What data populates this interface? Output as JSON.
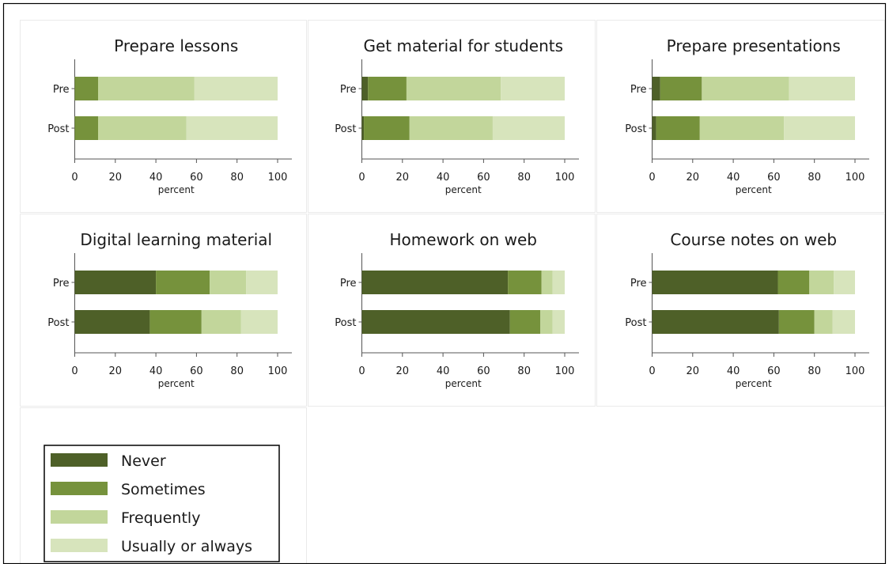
{
  "chart_data": {
    "type": "bar",
    "orientation": "horizontal",
    "stacked": true,
    "legend": {
      "position": "bottom-left",
      "entries": [
        {
          "label": "Never",
          "color": "#4e6028"
        },
        {
          "label": "Sometimes",
          "color": "#76923c"
        },
        {
          "label": "Frequently",
          "color": "#c2d69b"
        },
        {
          "label": "Usually or always",
          "color": "#d7e4bc"
        }
      ]
    },
    "panels": [
      {
        "title": "Prepare lessons",
        "categories": [
          "Pre",
          "Post"
        ],
        "series": [
          {
            "name": "Never",
            "values": [
              0,
              0
            ]
          },
          {
            "name": "Sometimes",
            "values": [
              11.5,
              11.5
            ]
          },
          {
            "name": "Frequently",
            "values": [
              47.5,
              43.5
            ]
          },
          {
            "name": "Usually or always",
            "values": [
              41,
              45
            ]
          }
        ],
        "xlabel": "percent",
        "xlim": [
          0,
          100
        ],
        "xticks": [
          0,
          20,
          40,
          60,
          80,
          100
        ]
      },
      {
        "title": "Get material for students",
        "categories": [
          "Pre",
          "Post"
        ],
        "series": [
          {
            "name": "Never",
            "values": [
              3,
              1
            ]
          },
          {
            "name": "Sometimes",
            "values": [
              19,
              22.5
            ]
          },
          {
            "name": "Frequently",
            "values": [
              46.5,
              41
            ]
          },
          {
            "name": "Usually or always",
            "values": [
              31.5,
              35.5
            ]
          }
        ],
        "xlabel": "percent",
        "xlim": [
          0,
          100
        ],
        "xticks": [
          0,
          20,
          40,
          60,
          80,
          100
        ]
      },
      {
        "title": "Prepare presentations",
        "categories": [
          "Pre",
          "Post"
        ],
        "series": [
          {
            "name": "Never",
            "values": [
              4,
              2
            ]
          },
          {
            "name": "Sometimes",
            "values": [
              20.5,
              21.5
            ]
          },
          {
            "name": "Frequently",
            "values": [
              43,
              41.5
            ]
          },
          {
            "name": "Usually or always",
            "values": [
              32.5,
              35
            ]
          }
        ],
        "xlabel": "percent",
        "xlim": [
          0,
          100
        ],
        "xticks": [
          0,
          20,
          40,
          60,
          80,
          100
        ]
      },
      {
        "title": "Digital learning material",
        "categories": [
          "Pre",
          "Post"
        ],
        "series": [
          {
            "name": "Never",
            "values": [
              40,
              37
            ]
          },
          {
            "name": "Sometimes",
            "values": [
              26.5,
              25.5
            ]
          },
          {
            "name": "Frequently",
            "values": [
              18,
              19.5
            ]
          },
          {
            "name": "Usually or always",
            "values": [
              15.5,
              18
            ]
          }
        ],
        "xlabel": "percent",
        "xlim": [
          0,
          100
        ],
        "xticks": [
          0,
          20,
          40,
          60,
          80,
          100
        ]
      },
      {
        "title": "Homework on web",
        "categories": [
          "Pre",
          "Post"
        ],
        "series": [
          {
            "name": "Never",
            "values": [
              72,
              73
            ]
          },
          {
            "name": "Sometimes",
            "values": [
              16.5,
              15
            ]
          },
          {
            "name": "Frequently",
            "values": [
              5.5,
              6
            ]
          },
          {
            "name": "Usually or always",
            "values": [
              6,
              6
            ]
          }
        ],
        "xlabel": "percent",
        "xlim": [
          0,
          100
        ],
        "xticks": [
          0,
          20,
          40,
          60,
          80,
          100
        ]
      },
      {
        "title": "Course notes on web",
        "categories": [
          "Pre",
          "Post"
        ],
        "series": [
          {
            "name": "Never",
            "values": [
              62,
              62.5
            ]
          },
          {
            "name": "Sometimes",
            "values": [
              15.5,
              17.5
            ]
          },
          {
            "name": "Frequently",
            "values": [
              12,
              9
            ]
          },
          {
            "name": "Usually or always",
            "values": [
              10.5,
              11
            ]
          }
        ],
        "xlabel": "percent",
        "xlim": [
          0,
          100
        ],
        "xticks": [
          0,
          20,
          40,
          60,
          80,
          100
        ]
      }
    ]
  }
}
